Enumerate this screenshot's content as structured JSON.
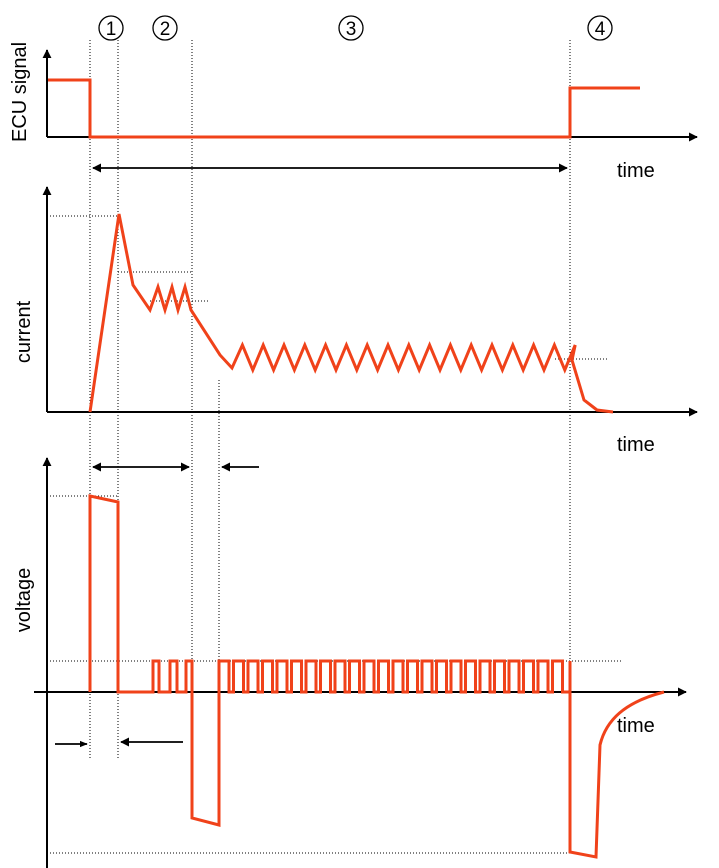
{
  "colors": {
    "signal": "#f0421a",
    "axis": "#000000"
  },
  "phases": [
    "1",
    "2",
    "3",
    "4"
  ],
  "panels": {
    "ecu": {
      "ylabel": "ECU signal",
      "xlabel": "time"
    },
    "current": {
      "ylabel": "current",
      "xlabel": "time"
    },
    "voltage": {
      "ylabel": "voltage",
      "xlabel": "time"
    }
  }
}
